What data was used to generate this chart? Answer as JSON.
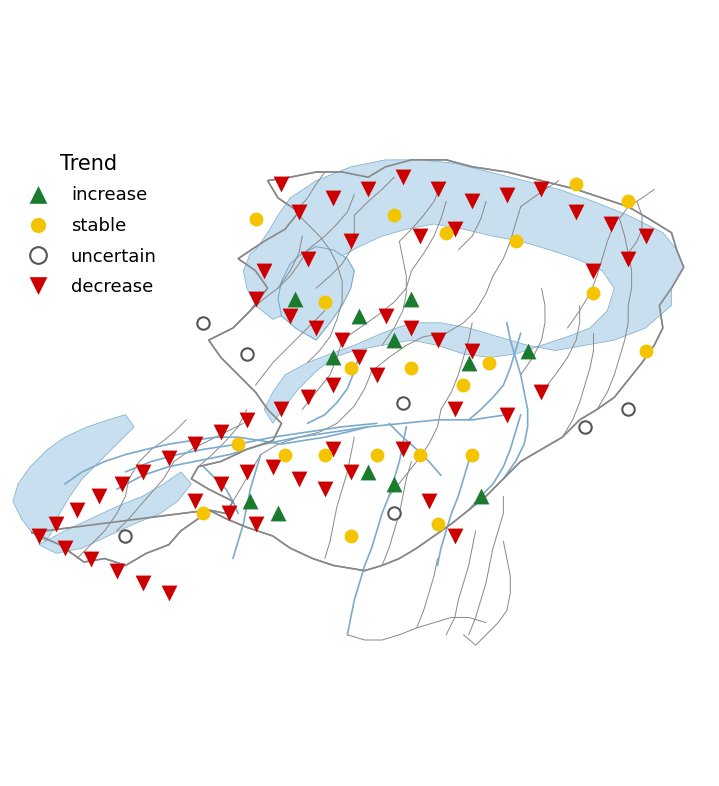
{
  "title": "",
  "background_color": "#ffffff",
  "water_color": "#c8dff0",
  "land_color": "#ffffff",
  "border_color": "#555555",
  "legend_title": "Trend",
  "legend_items": [
    "increase",
    "stable",
    "uncertain",
    "decrease"
  ],
  "legend_colors": [
    "#1a7a2e",
    "#f5c400",
    "#ffffff",
    "#cc0000"
  ],
  "legend_markers": [
    "triangle_up",
    "circle_filled",
    "circle_open",
    "triangle_down"
  ],
  "markers": {
    "decrease": [
      [
        4.8,
        53.38
      ],
      [
        4.9,
        53.22
      ],
      [
        5.1,
        53.3
      ],
      [
        5.3,
        53.35
      ],
      [
        5.5,
        53.42
      ],
      [
        5.7,
        53.35
      ],
      [
        5.9,
        53.28
      ],
      [
        6.1,
        53.32
      ],
      [
        6.3,
        53.35
      ],
      [
        6.5,
        53.22
      ],
      [
        6.7,
        53.15
      ],
      [
        6.9,
        53.08
      ],
      [
        6.8,
        52.95
      ],
      [
        6.6,
        52.88
      ],
      [
        5.8,
        53.12
      ],
      [
        5.6,
        53.08
      ],
      [
        5.2,
        53.05
      ],
      [
        4.95,
        52.95
      ],
      [
        4.7,
        52.88
      ],
      [
        4.65,
        52.72
      ],
      [
        4.85,
        52.62
      ],
      [
        5.0,
        52.55
      ],
      [
        5.15,
        52.48
      ],
      [
        5.25,
        52.38
      ],
      [
        5.35,
        52.28
      ],
      [
        5.1,
        52.22
      ],
      [
        4.95,
        52.15
      ],
      [
        4.8,
        52.08
      ],
      [
        4.6,
        52.02
      ],
      [
        4.45,
        51.95
      ],
      [
        4.3,
        51.88
      ],
      [
        4.15,
        51.8
      ],
      [
        4.0,
        51.72
      ],
      [
        3.88,
        51.65
      ],
      [
        3.75,
        51.58
      ],
      [
        3.62,
        51.5
      ],
      [
        3.5,
        51.42
      ],
      [
        3.4,
        51.35
      ],
      [
        3.55,
        51.28
      ],
      [
        3.7,
        51.22
      ],
      [
        3.85,
        51.15
      ],
      [
        4.0,
        51.08
      ],
      [
        4.15,
        51.02
      ],
      [
        4.3,
        51.55
      ],
      [
        4.5,
        51.48
      ],
      [
        4.65,
        51.42
      ],
      [
        4.45,
        51.65
      ],
      [
        4.6,
        51.72
      ],
      [
        4.75,
        51.75
      ],
      [
        4.9,
        51.68
      ],
      [
        5.05,
        51.62
      ],
      [
        5.4,
        52.62
      ],
      [
        5.55,
        52.55
      ],
      [
        5.7,
        52.48
      ],
      [
        5.9,
        52.42
      ],
      [
        6.3,
        52.18
      ],
      [
        5.5,
        51.85
      ],
      [
        5.2,
        51.72
      ],
      [
        5.1,
        51.85
      ],
      [
        5.65,
        51.55
      ],
      [
        5.8,
        52.08
      ],
      [
        6.1,
        52.05
      ],
      [
        5.8,
        51.35
      ]
    ],
    "increase": [
      [
        4.88,
        52.72
      ],
      [
        5.1,
        52.38
      ],
      [
        5.25,
        52.62
      ],
      [
        5.45,
        52.48
      ],
      [
        5.55,
        52.72
      ],
      [
        4.62,
        51.55
      ],
      [
        4.78,
        51.48
      ],
      [
        5.88,
        52.35
      ],
      [
        6.22,
        52.42
      ],
      [
        5.3,
        51.72
      ],
      [
        5.45,
        51.65
      ],
      [
        5.95,
        51.58
      ]
    ],
    "stable": [
      [
        4.65,
        53.18
      ],
      [
        5.45,
        53.2
      ],
      [
        5.75,
        53.1
      ],
      [
        6.15,
        53.05
      ],
      [
        6.5,
        53.38
      ],
      [
        6.8,
        53.28
      ],
      [
        5.05,
        52.7
      ],
      [
        5.2,
        52.32
      ],
      [
        5.55,
        52.32
      ],
      [
        5.85,
        52.22
      ],
      [
        4.55,
        51.88
      ],
      [
        4.82,
        51.82
      ],
      [
        5.05,
        51.82
      ],
      [
        5.35,
        51.82
      ],
      [
        5.7,
        51.42
      ],
      [
        6.0,
        52.35
      ],
      [
        6.6,
        52.75
      ],
      [
        6.9,
        52.42
      ],
      [
        5.9,
        51.82
      ],
      [
        5.2,
        51.35
      ],
      [
        4.35,
        51.48
      ],
      [
        5.6,
        51.82
      ]
    ],
    "uncertain": [
      [
        4.35,
        52.58
      ],
      [
        4.6,
        52.4
      ],
      [
        5.5,
        52.12
      ],
      [
        5.45,
        51.48
      ],
      [
        6.55,
        51.98
      ],
      [
        3.9,
        51.35
      ],
      [
        6.8,
        52.08
      ]
    ]
  },
  "xlim": [
    3.2,
    7.3
  ],
  "ylim": [
    50.7,
    53.65
  ],
  "figsize": [
    7.19,
    7.86
  ],
  "dpi": 100
}
